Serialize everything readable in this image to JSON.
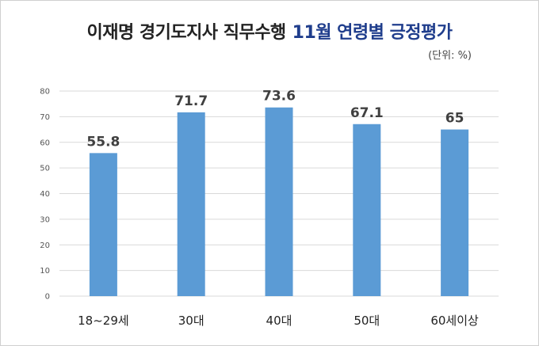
{
  "title_part1": "이재명 경기도지사 직무수행",
  "title_part2": "11월 연령별 긍정평가",
  "unit": "(단위: %)",
  "colors": {
    "bar": "#5b9bd5",
    "title_accent": "#1f3d8c",
    "grid": "#d9d9d9"
  },
  "chart_data": {
    "type": "bar",
    "title": "이재명 경기도지사 직무수행 11월 연령별 긍정평가",
    "unit_label": "(단위: %)",
    "categories": [
      "18~29세",
      "30대",
      "40대",
      "50대",
      "60세이상"
    ],
    "values": [
      55.8,
      71.7,
      73.6,
      67.1,
      65
    ],
    "data_labels": [
      "55.8",
      "71.7",
      "73.6",
      "67.1",
      "65"
    ],
    "yticks": [
      "0",
      "10",
      "20",
      "30",
      "40",
      "50",
      "60",
      "70",
      "80"
    ],
    "ylim": [
      0,
      80
    ],
    "grid": true,
    "legend": false
  }
}
